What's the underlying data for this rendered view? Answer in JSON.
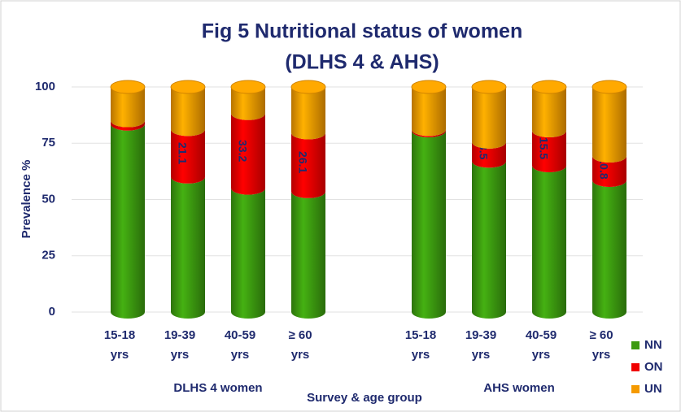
{
  "chart_data": {
    "type": "bar",
    "stacked": true,
    "title": "Fig 5 Nutritional status of women",
    "subtitle": "(DLHS 4 & AHS)",
    "y_label": "Prevalence %",
    "x_label": "Survey & age group",
    "categories": [
      [
        "15-18",
        "yrs"
      ],
      [
        "19-39",
        "yrs"
      ],
      [
        "40-59",
        "yrs"
      ],
      [
        "≥ 60",
        "yrs"
      ],
      null,
      [
        "15-18",
        "yrs"
      ],
      [
        "19-39",
        "yrs"
      ],
      [
        "40-59",
        "yrs"
      ],
      [
        "≥ 60",
        "yrs"
      ]
    ],
    "groups": [
      "DLHS 4 women",
      "AHS women"
    ],
    "series": [
      {
        "name": "NN",
        "color": "#3c9a10",
        "values": [
          83.5,
          60,
          55,
          53.5,
          null,
          80.5,
          67,
          65,
          58.5
        ]
      },
      {
        "name": "ON",
        "color": "#f00000",
        "values": [
          1.5,
          21.1,
          33.2,
          26.1,
          null,
          0.6,
          8.5,
          15.5,
          10.8
        ],
        "show_labels": true
      },
      {
        "name": "UN",
        "color": "#f59a00",
        "values": [
          15,
          18.9,
          11.8,
          20.4,
          null,
          18.9,
          24.5,
          19.5,
          30.7
        ]
      }
    ],
    "ylim": [
      0,
      100
    ],
    "yticks": [
      0,
      25,
      50,
      75,
      100
    ],
    "grid": true,
    "legend": "bottom-right"
  }
}
